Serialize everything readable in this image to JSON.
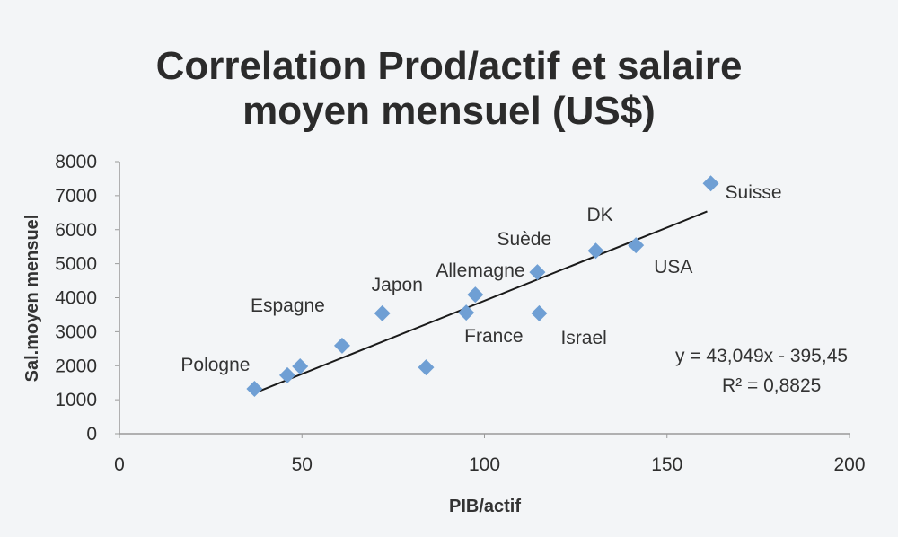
{
  "chart_data": {
    "type": "scatter",
    "title": "Correlation Prod/actif et salaire moyen mensuel (US$)",
    "title_lines": [
      "Correlation Prod/actif et salaire",
      "moyen mensuel (US$)"
    ],
    "xlabel": "PIB/actif",
    "ylabel": "Sal.moyen mensuel",
    "xlim": [
      0,
      200
    ],
    "ylim": [
      0,
      8000
    ],
    "x_ticks": [
      0,
      50,
      100,
      150,
      200
    ],
    "y_ticks": [
      0,
      1000,
      2000,
      3000,
      4000,
      5000,
      6000,
      7000,
      8000
    ],
    "grid": false,
    "marker": "diamond",
    "marker_color": "#6f9fd4",
    "points": [
      {
        "label": "Pologne",
        "x": 37,
        "y": 1320
      },
      {
        "label": "",
        "x": 46,
        "y": 1720
      },
      {
        "label": "",
        "x": 49.5,
        "y": 1980
      },
      {
        "label": "Espagne",
        "x": 61,
        "y": 2590
      },
      {
        "label": "Japon",
        "x": 72,
        "y": 3540
      },
      {
        "label": "",
        "x": 84,
        "y": 1950
      },
      {
        "label": "France",
        "x": 95,
        "y": 3560
      },
      {
        "label": "Allemagne",
        "x": 97.5,
        "y": 4090
      },
      {
        "label": "Suède",
        "x": 114.5,
        "y": 4750
      },
      {
        "label": "Israel",
        "x": 115,
        "y": 3540
      },
      {
        "label": "DK",
        "x": 130.5,
        "y": 5380
      },
      {
        "label": "USA",
        "x": 141.5,
        "y": 5540
      },
      {
        "label": "Suisse",
        "x": 162,
        "y": 7360
      }
    ],
    "trendline": {
      "type": "linear",
      "slope": 43.049,
      "intercept": -395.45,
      "x_range": [
        37,
        161
      ],
      "equation": "y = 43,049x - 395,45",
      "r_squared": "R² = 0,8825"
    }
  }
}
